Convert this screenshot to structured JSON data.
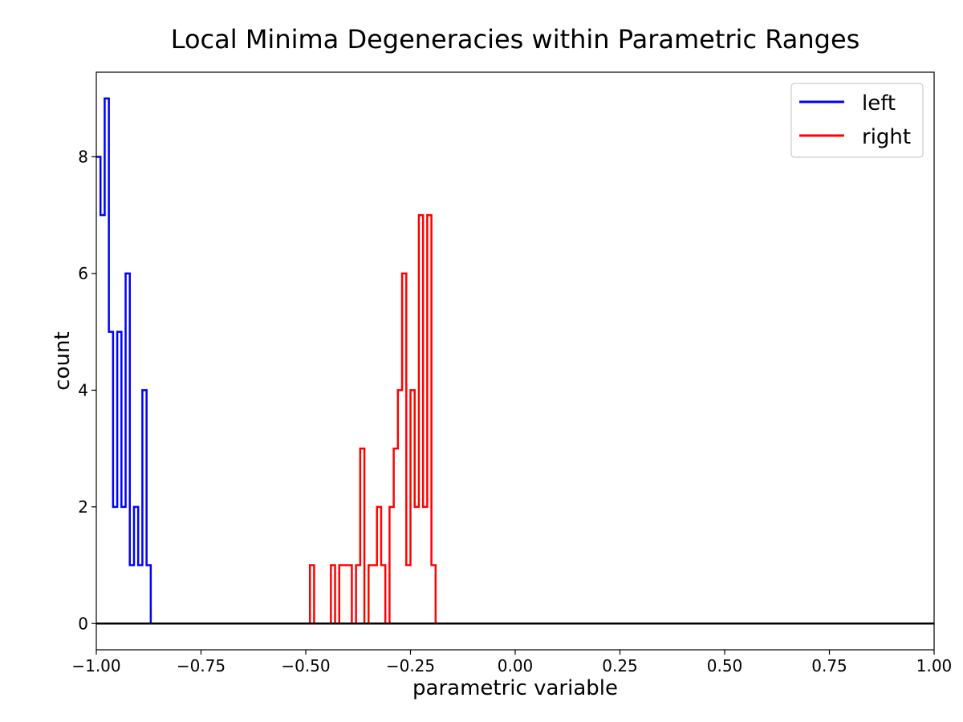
{
  "chart_data": {
    "type": "line",
    "title": "Local Minima Degeneracies within Parametric Ranges",
    "xlabel": "parametric variable",
    "ylabel": "count",
    "xlim": [
      -1.0,
      1.0
    ],
    "ylim": [
      -0.45,
      9.45
    ],
    "xticks": [
      -1.0,
      -0.75,
      -0.5,
      -0.25,
      0.0,
      0.25,
      0.5,
      0.75,
      1.0
    ],
    "xtick_labels": [
      "−1.00",
      "−0.75",
      "−0.50",
      "−0.25",
      "0.00",
      "0.25",
      "0.50",
      "0.75",
      "1.00"
    ],
    "yticks": [
      0,
      2,
      4,
      6,
      8
    ],
    "ytick_labels": [
      "0",
      "2",
      "4",
      "6",
      "8"
    ],
    "grid": false,
    "legend_position": "top-right",
    "series": [
      {
        "name": "left",
        "color": "#0000ff",
        "step": "post",
        "x": [
          -1.0,
          -0.99,
          -0.98,
          -0.97,
          -0.96,
          -0.95,
          -0.94,
          -0.93,
          -0.92,
          -0.91,
          -0.9,
          -0.89,
          -0.88,
          -0.87,
          1.0
        ],
        "y": [
          8,
          7,
          9,
          5,
          2,
          5,
          2,
          6,
          1,
          2,
          1,
          4,
          1,
          0,
          0
        ]
      },
      {
        "name": "right",
        "color": "#ff0000",
        "step": "post",
        "x": [
          -1.0,
          -0.49,
          -0.48,
          -0.44,
          -0.43,
          -0.42,
          -0.41,
          -0.4,
          -0.39,
          -0.38,
          -0.37,
          -0.36,
          -0.35,
          -0.34,
          -0.33,
          -0.32,
          -0.31,
          -0.3,
          -0.29,
          -0.28,
          -0.27,
          -0.26,
          -0.25,
          -0.24,
          -0.23,
          -0.22,
          -0.21,
          -0.2,
          -0.19,
          -0.18,
          1.0
        ],
        "y": [
          0,
          1,
          0,
          1,
          0,
          1,
          1,
          1,
          0,
          1,
          3,
          0,
          1,
          1,
          2,
          1,
          0,
          2,
          3,
          4,
          6,
          1,
          4,
          2,
          7,
          2,
          7,
          1,
          0,
          0,
          0
        ]
      }
    ]
  }
}
